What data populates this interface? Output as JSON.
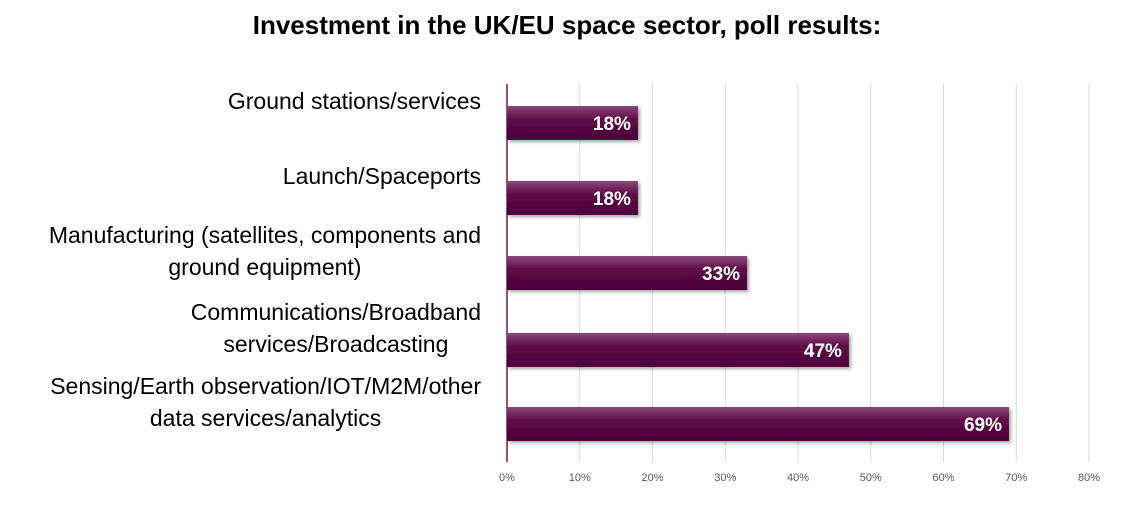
{
  "chart_data": {
    "type": "bar",
    "orientation": "horizontal",
    "title": "Investment in the UK/EU space sector, poll results:",
    "categories": [
      [
        "Ground stations/services"
      ],
      [
        "Launch/Spaceports"
      ],
      [
        "Manufacturing (satellites, components and",
        "ground equipment)"
      ],
      [
        "Communications/Broadband",
        "services/Broadcasting"
      ],
      [
        "Sensing/Earth observation/IOT/M2M/other",
        "data services/analytics"
      ]
    ],
    "values": [
      18,
      18,
      33,
      47,
      69
    ],
    "data_labels": [
      "18%",
      "18%",
      "33%",
      "47%",
      "69%"
    ],
    "x_ticks": [
      0,
      10,
      20,
      30,
      40,
      50,
      60,
      70,
      80
    ],
    "x_tick_labels": [
      "0%",
      "10%",
      "20%",
      "30%",
      "40%",
      "50%",
      "60%",
      "70%",
      "80%"
    ],
    "xlim": [
      0,
      80
    ],
    "xlabel": "",
    "ylabel": "",
    "grid": true,
    "legend": "none",
    "colors": {
      "bar_top": "#8a4a78",
      "bar_mid": "#5e0a48",
      "bar_bottom": "#4a0038",
      "axis": "#6b1a5a",
      "grid": "#d9d9d9",
      "tick_label": "#595959",
      "data_label": "#ffffff",
      "category_label": "#000000"
    }
  }
}
